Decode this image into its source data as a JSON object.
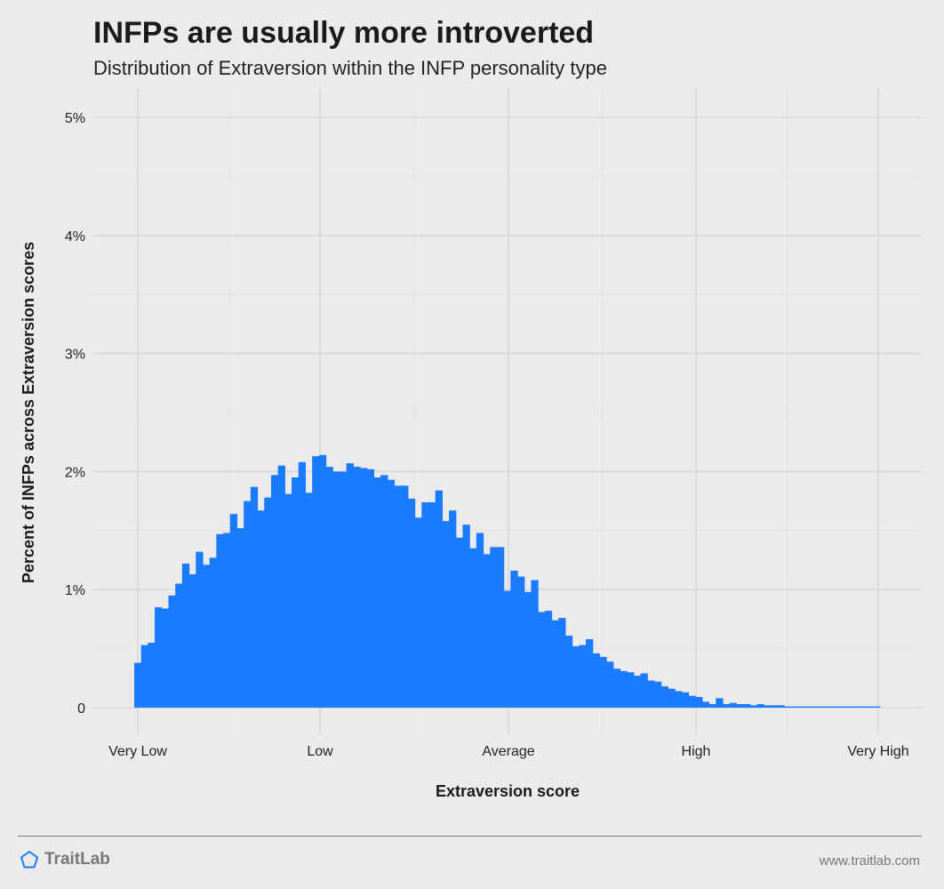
{
  "header": {
    "title": "INFPs are usually more introverted",
    "subtitle": "Distribution of Extraversion within the INFP personality type"
  },
  "footer": {
    "logo_text": "TraitLab",
    "logo_icon": "pentagon-icon",
    "url": "www.traitlab.com"
  },
  "colors": {
    "bar": "#1a7bff",
    "background": "#ebebeb",
    "gridline": "#d7d7d7",
    "logo": "#1a7bff"
  },
  "chart_data": {
    "type": "bar",
    "title": "INFPs are usually more introverted",
    "subtitle": "Distribution of Extraversion within the INFP personality type",
    "xlabel": "Extraversion score",
    "ylabel": "Percent of INFPs across Extraversion scores",
    "x_ticks": [
      "Very Low",
      "Low",
      "Average",
      "High",
      "Very High"
    ],
    "y_ticks": [
      "0",
      "1%",
      "2%",
      "3%",
      "4%",
      "5%"
    ],
    "ylim": [
      0,
      5
    ],
    "grid": true,
    "legend": "none",
    "series": [
      {
        "values": [
          0.38,
          0.53,
          0.55,
          0.85,
          0.84,
          0.95,
          1.05,
          1.22,
          1.13,
          1.32,
          1.21,
          1.27,
          1.47,
          1.48,
          1.64,
          1.52,
          1.75,
          1.87,
          1.67,
          1.78,
          1.97,
          2.05,
          1.81,
          1.95,
          2.08,
          1.82,
          2.13,
          2.14,
          2.04,
          2.0,
          2.0,
          2.07,
          2.04,
          2.03,
          2.02,
          1.95,
          1.97,
          1.93,
          1.88,
          1.88,
          1.77,
          1.61,
          1.74,
          1.74,
          1.84,
          1.58,
          1.67,
          1.44,
          1.55,
          1.35,
          1.48,
          1.3,
          1.36,
          1.36,
          0.99,
          1.16,
          1.11,
          0.98,
          1.08,
          0.81,
          0.82,
          0.74,
          0.76,
          0.61,
          0.52,
          0.53,
          0.58,
          0.46,
          0.43,
          0.39,
          0.33,
          0.31,
          0.3,
          0.27,
          0.29,
          0.23,
          0.22,
          0.18,
          0.16,
          0.14,
          0.13,
          0.1,
          0.09,
          0.05,
          0.03,
          0.08,
          0.03,
          0.04,
          0.03,
          0.03,
          0.02,
          0.03,
          0.02,
          0.02,
          0.02,
          0.01,
          0.01,
          0.01,
          0.01,
          0.01,
          0.01,
          0.01,
          0.01,
          0.01,
          0.01,
          0.01,
          0.01,
          0.01,
          0.01
        ]
      }
    ]
  }
}
